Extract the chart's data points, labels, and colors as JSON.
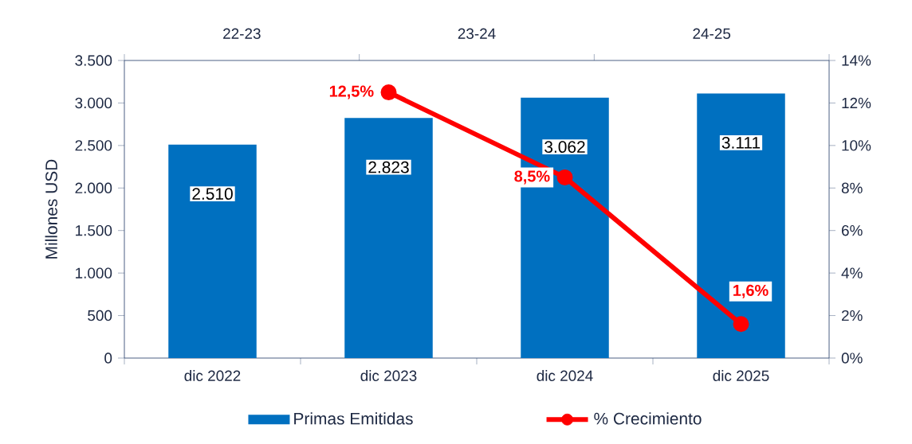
{
  "chart_data": {
    "type": "bar",
    "categories": [
      "dic 2022",
      "dic 2023",
      "dic 2024",
      "dic 2025"
    ],
    "ylabel": "Millones  USD",
    "ylim": [
      0,
      3500
    ],
    "yticks": [
      0,
      500,
      {
        "value": 1000,
        "label": "1.000"
      },
      {
        "value": 1500,
        "label": "1.500"
      },
      {
        "value": 2000,
        "label": "2.000"
      },
      {
        "value": 2500,
        "label": "2.500"
      },
      {
        "value": 3000,
        "label": "3.000"
      },
      {
        "value": 3500,
        "label": "3.500"
      }
    ],
    "y2lim": [
      0,
      14
    ],
    "y2ticks": [
      {
        "value": 0,
        "label": "0%"
      },
      {
        "value": 2,
        "label": "2%"
      },
      {
        "value": 4,
        "label": "4%"
      },
      {
        "value": 6,
        "label": "6%"
      },
      {
        "value": 8,
        "label": "8%"
      },
      {
        "value": 10,
        "label": "10%"
      },
      {
        "value": 12,
        "label": "12%"
      },
      {
        "value": 14,
        "label": "14%"
      }
    ],
    "annotations": [
      "22-23",
      "23-24",
      "24-25"
    ],
    "series": [
      {
        "name": "Primas Emitidas",
        "color": "#0070c0",
        "values": [
          2510,
          2823,
          3062,
          3111
        ],
        "value_labels": [
          "2.510",
          "2.823",
          "3.062",
          "3.111"
        ]
      },
      {
        "name": "% Crecimiento",
        "type": "line",
        "axis": "y2",
        "color": "#ff0000",
        "values": [
          null,
          12.5,
          8.5,
          1.6
        ],
        "value_labels": [
          null,
          "12,5%",
          "8,5%",
          "1,6%"
        ],
        "marker": "circle"
      }
    ],
    "legend": "bottom",
    "grid": false
  }
}
